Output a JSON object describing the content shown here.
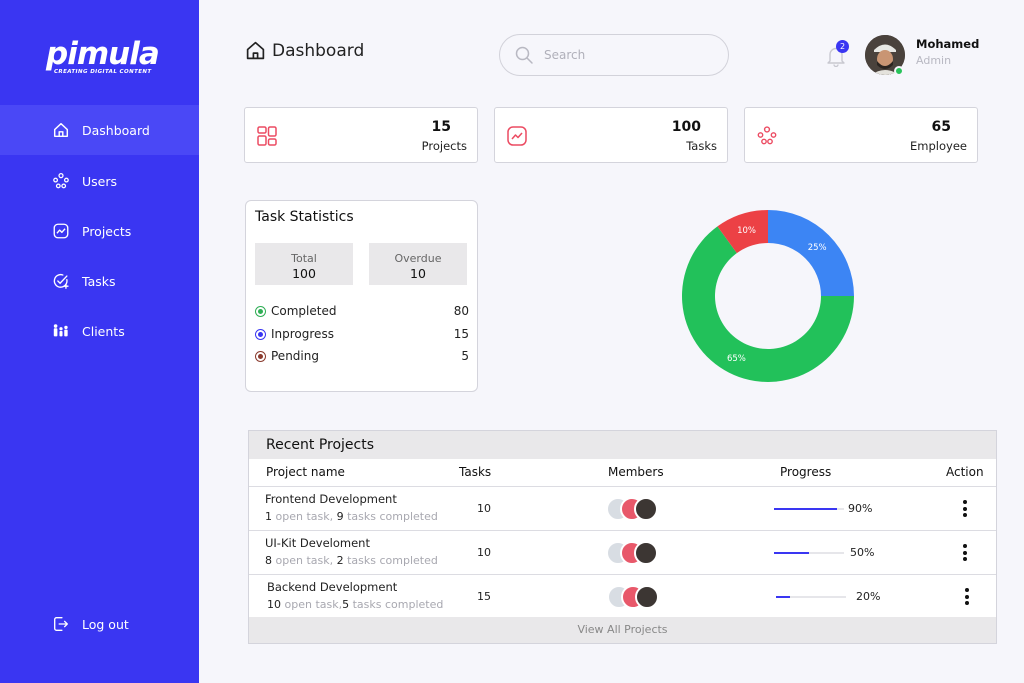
{
  "brand": {
    "logo_text": "pimula",
    "logo_tagline": "CREATING DIGITAL CONTENT"
  },
  "sidebar": {
    "items": [
      {
        "label": "Dashboard",
        "icon": "home-icon",
        "active": true
      },
      {
        "label": "Users",
        "icon": "users-icon"
      },
      {
        "label": "Projects",
        "icon": "chart-icon"
      },
      {
        "label": "Tasks",
        "icon": "task-check-icon"
      },
      {
        "label": "Clients",
        "icon": "clients-icon"
      }
    ],
    "logout_label": "Log out"
  },
  "header": {
    "title": "Dashboard",
    "search_placeholder": "Search",
    "notification_count": "2",
    "user_name": "Mohamed",
    "user_role": "Admin"
  },
  "stats": [
    {
      "value": "15",
      "label": "Projects",
      "icon": "projects-grid-icon"
    },
    {
      "value": "100",
      "label": "Tasks",
      "icon": "trend-icon"
    },
    {
      "value": "65",
      "label": "Employee",
      "icon": "employees-icon"
    }
  ],
  "task_statistics": {
    "title": "Task Statistics",
    "total_label": "Total",
    "total_value": "100",
    "overdue_label": "Overdue",
    "overdue_value": "10",
    "rows": [
      {
        "label": "Completed",
        "count": "80",
        "color": "#2fae55"
      },
      {
        "label": "Inprogress",
        "count": "15",
        "color": "#3a36f2"
      },
      {
        "label": "Pending",
        "count": "5",
        "color": "#8a3b2e"
      }
    ]
  },
  "donut": {
    "segments": [
      {
        "label": "25%",
        "value": 25,
        "color": "#3c85f4"
      },
      {
        "label": "65%",
        "value": 65,
        "color": "#22c15a"
      },
      {
        "label": "10%",
        "value": 10,
        "color": "#ec4145"
      }
    ]
  },
  "recent_projects": {
    "title": "Recent Projects",
    "columns": {
      "name": "Project name",
      "tasks": "Tasks",
      "members": "Members",
      "progress": "Progress",
      "action": "Action"
    },
    "rows": [
      {
        "name": "Frontend Development",
        "open_count": "1",
        "open_text": " open task, ",
        "done_count": "9",
        "done_text": " tasks completed",
        "tasks": "10",
        "progress": 0.9,
        "progress_label": "90%"
      },
      {
        "name": "UI-Kit Develoment",
        "open_count": "8",
        "open_text": " open task, ",
        "done_count": "2",
        "done_text": " tasks completed",
        "tasks": "10",
        "progress": 0.5,
        "progress_label": "50%"
      },
      {
        "name": "Backend Development",
        "open_count": "10",
        "open_text": " open task,",
        "done_count": "5",
        "done_text": " tasks completed",
        "tasks": "15",
        "progress": 0.2,
        "progress_label": "20%"
      }
    ],
    "view_all": "View All Projects"
  }
}
